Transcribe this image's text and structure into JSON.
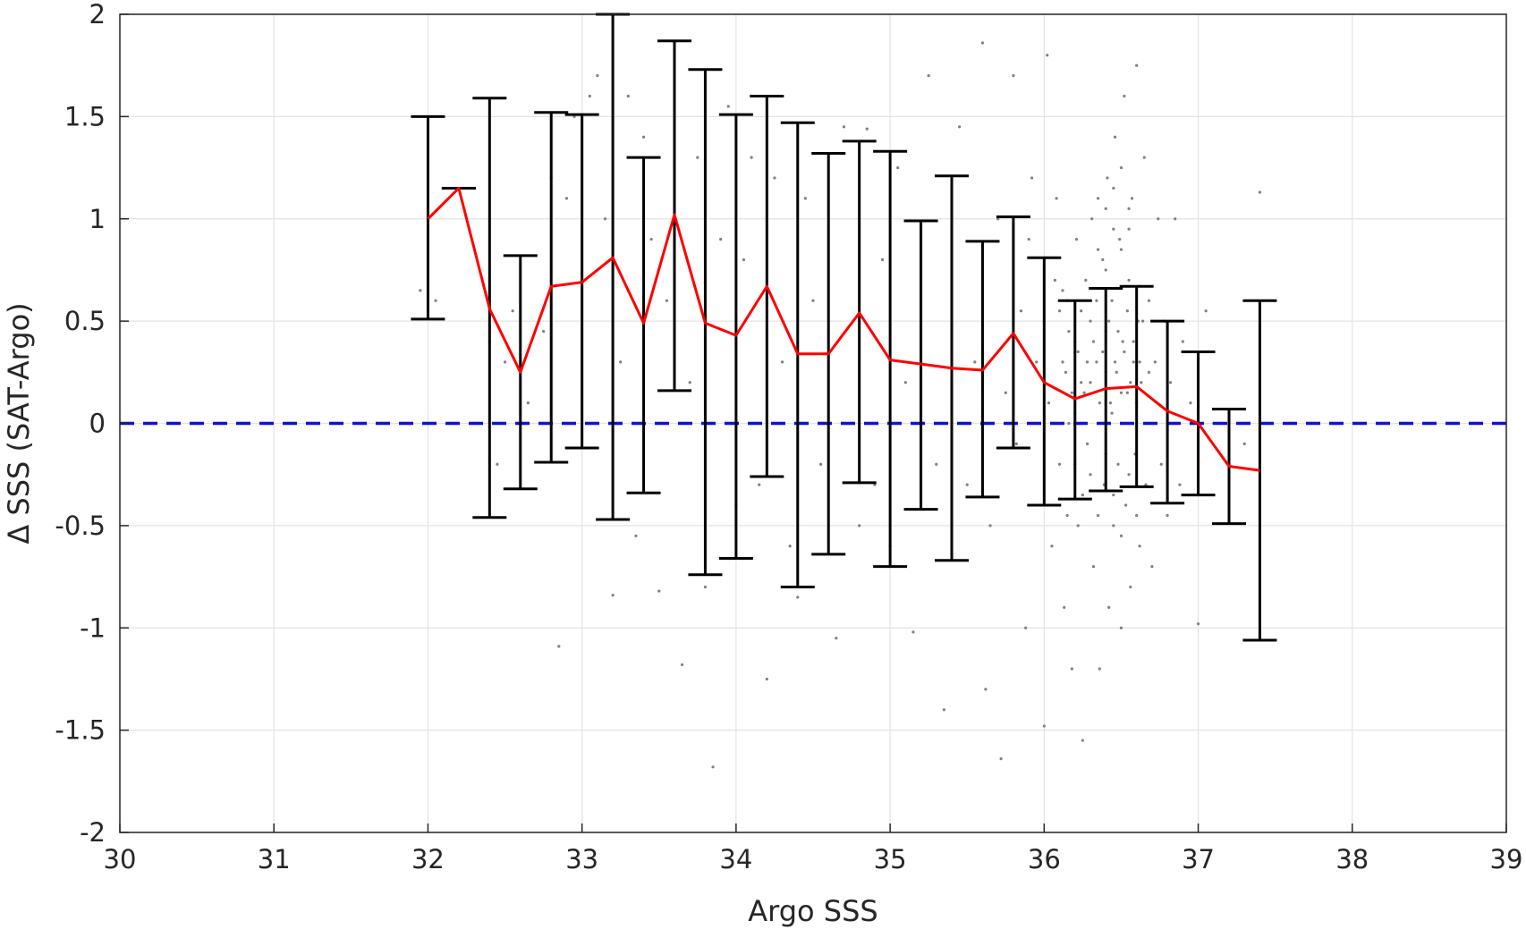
{
  "chart_data": {
    "type": "scatter",
    "title": "",
    "xlabel": "Argo SSS",
    "ylabel": "Δ SSS (SAT-Argo)",
    "xlim": [
      30,
      39
    ],
    "ylim": [
      -2,
      2
    ],
    "xticks": [
      30,
      31,
      32,
      33,
      34,
      35,
      36,
      37,
      38,
      39
    ],
    "xtick_labels": [
      "30",
      "31",
      "32",
      "33",
      "34",
      "35",
      "36",
      "37",
      "38",
      "39"
    ],
    "yticks": [
      -2,
      -1.5,
      -1,
      -0.5,
      0,
      0.5,
      1,
      1.5,
      2
    ],
    "ytick_labels": [
      "-2",
      "-1.5",
      "-1",
      "-0.5",
      "0",
      "0.5",
      "1",
      "1.5",
      "2"
    ],
    "grid": true,
    "reference_line": {
      "y": 0,
      "style": "dashed",
      "color": "#1010e0"
    },
    "mean_series": {
      "color": "#ff0000",
      "x": [
        32.0,
        32.2,
        32.4,
        32.6,
        32.8,
        33.0,
        33.2,
        33.4,
        33.6,
        33.8,
        34.0,
        34.2,
        34.4,
        34.6,
        34.8,
        35.0,
        35.2,
        35.4,
        35.6,
        35.8,
        36.0,
        36.2,
        36.4,
        36.6,
        36.8,
        37.0,
        37.2,
        37.4
      ],
      "y": [
        1.0,
        1.15,
        0.56,
        0.25,
        0.67,
        0.69,
        0.81,
        0.49,
        1.02,
        0.49,
        0.43,
        0.67,
        0.34,
        0.34,
        0.54,
        0.31,
        0.29,
        0.27,
        0.26,
        0.44,
        0.2,
        0.12,
        0.17,
        0.18,
        0.06,
        0.0,
        -0.21,
        -0.23
      ]
    },
    "error_bars": {
      "color": "#000000",
      "x": [
        32.0,
        32.2,
        32.4,
        32.6,
        32.8,
        33.0,
        33.2,
        33.4,
        33.6,
        33.8,
        34.0,
        34.2,
        34.4,
        34.6,
        34.8,
        35.0,
        35.2,
        35.4,
        35.6,
        35.8,
        36.0,
        36.2,
        36.4,
        36.6,
        36.8,
        37.0,
        37.2,
        37.4
      ],
      "upper": [
        1.5,
        1.15,
        1.59,
        0.82,
        1.52,
        1.51,
        2.0,
        1.3,
        1.87,
        1.73,
        1.51,
        1.6,
        1.47,
        1.32,
        1.38,
        1.33,
        0.99,
        1.21,
        0.89,
        1.01,
        0.81,
        0.6,
        0.66,
        0.67,
        0.5,
        0.35,
        0.07,
        0.6
      ],
      "lower": [
        0.51,
        1.15,
        -0.46,
        -0.32,
        -0.19,
        -0.12,
        -0.47,
        -0.34,
        0.16,
        -0.74,
        -0.66,
        -0.26,
        -0.8,
        -0.64,
        -0.29,
        -0.7,
        -0.42,
        -0.67,
        -0.36,
        -0.12,
        -0.4,
        -0.37,
        -0.33,
        -0.31,
        -0.39,
        -0.35,
        -0.49,
        -1.06
      ]
    },
    "scatter": {
      "color": "#808080",
      "note_count_shown": "many individual matchup points",
      "points": [
        [
          31.95,
          0.65
        ],
        [
          32.05,
          0.6
        ],
        [
          32.4,
          0.4
        ],
        [
          32.5,
          0.3
        ],
        [
          32.55,
          0.55
        ],
        [
          32.45,
          -0.2
        ],
        [
          32.65,
          0.1
        ],
        [
          32.75,
          0.45
        ],
        [
          32.8,
          1.2
        ],
        [
          32.85,
          -1.09
        ],
        [
          32.9,
          1.1
        ],
        [
          32.95,
          1.5
        ],
        [
          33.0,
          0.7
        ],
        [
          33.05,
          1.6
        ],
        [
          33.1,
          1.7
        ],
        [
          33.15,
          1.0
        ],
        [
          33.2,
          -0.84
        ],
        [
          33.25,
          0.3
        ],
        [
          33.3,
          1.6
        ],
        [
          33.35,
          -0.55
        ],
        [
          33.4,
          1.4
        ],
        [
          33.45,
          0.9
        ],
        [
          33.5,
          -0.82
        ],
        [
          33.55,
          0.6
        ],
        [
          33.6,
          1.25
        ],
        [
          33.65,
          -1.18
        ],
        [
          33.7,
          0.2
        ],
        [
          33.75,
          1.3
        ],
        [
          33.8,
          -0.8
        ],
        [
          33.85,
          -1.68
        ],
        [
          33.9,
          0.9
        ],
        [
          33.95,
          1.55
        ],
        [
          34.0,
          -0.4
        ],
        [
          34.05,
          0.8
        ],
        [
          34.1,
          1.3
        ],
        [
          34.15,
          -0.3
        ],
        [
          34.2,
          -1.25
        ],
        [
          34.25,
          1.2
        ],
        [
          34.3,
          0.3
        ],
        [
          34.35,
          -0.6
        ],
        [
          34.4,
          -0.85
        ],
        [
          34.45,
          1.1
        ],
        [
          34.5,
          0.6
        ],
        [
          34.55,
          -0.2
        ],
        [
          34.6,
          1.3
        ],
        [
          34.65,
          -1.05
        ],
        [
          34.7,
          1.45
        ],
        [
          34.75,
          0.0
        ],
        [
          34.8,
          -0.5
        ],
        [
          34.85,
          1.44
        ],
        [
          34.9,
          -0.3
        ],
        [
          34.95,
          0.8
        ],
        [
          35.0,
          -0.6
        ],
        [
          35.05,
          1.25
        ],
        [
          35.1,
          0.2
        ],
        [
          35.15,
          -1.02
        ],
        [
          35.2,
          0.5
        ],
        [
          35.25,
          1.7
        ],
        [
          35.3,
          -0.2
        ],
        [
          35.35,
          -1.4
        ],
        [
          35.4,
          0.6
        ],
        [
          35.45,
          1.45
        ],
        [
          35.5,
          -0.3
        ],
        [
          35.55,
          0.3
        ],
        [
          35.6,
          1.86
        ],
        [
          35.62,
          -1.3
        ],
        [
          35.65,
          -0.5
        ],
        [
          35.7,
          1.0
        ],
        [
          35.72,
          -1.64
        ],
        [
          35.75,
          0.15
        ],
        [
          35.8,
          1.7
        ],
        [
          35.82,
          -0.1
        ],
        [
          35.85,
          0.55
        ],
        [
          35.88,
          -1.0
        ],
        [
          35.9,
          0.9
        ],
        [
          35.92,
          1.2
        ],
        [
          35.95,
          0.3
        ],
        [
          35.97,
          -0.4
        ],
        [
          36.0,
          0.5
        ],
        [
          36.0,
          -1.48
        ],
        [
          36.02,
          1.8
        ],
        [
          36.03,
          0.1
        ],
        [
          36.05,
          -0.6
        ],
        [
          36.07,
          0.7
        ],
        [
          36.08,
          1.1
        ],
        [
          36.1,
          -0.2
        ],
        [
          36.12,
          0.3
        ],
        [
          36.13,
          -0.9
        ],
        [
          36.15,
          0.6
        ],
        [
          36.16,
          0.0
        ],
        [
          36.18,
          -1.2
        ],
        [
          36.2,
          0.4
        ],
        [
          36.21,
          0.9
        ],
        [
          36.22,
          -0.5
        ],
        [
          36.24,
          0.2
        ],
        [
          36.25,
          -1.55
        ],
        [
          36.27,
          0.7
        ],
        [
          36.28,
          -0.1
        ],
        [
          36.3,
          0.5
        ],
        [
          36.31,
          1.0
        ],
        [
          36.32,
          -0.7
        ],
        [
          36.34,
          0.3
        ],
        [
          36.35,
          0.0
        ],
        [
          36.36,
          -1.2
        ],
        [
          36.38,
          0.8
        ],
        [
          36.39,
          -0.3
        ],
        [
          36.4,
          0.45
        ],
        [
          36.41,
          1.2
        ],
        [
          36.42,
          -0.9
        ],
        [
          36.43,
          0.1
        ],
        [
          36.44,
          0.6
        ],
        [
          36.45,
          -0.5
        ],
        [
          36.46,
          1.4
        ],
        [
          36.47,
          0.25
        ],
        [
          36.48,
          -0.2
        ],
        [
          36.49,
          0.9
        ],
        [
          36.5,
          -1.0
        ],
        [
          36.51,
          0.4
        ],
        [
          36.52,
          1.6
        ],
        [
          36.53,
          -0.4
        ],
        [
          36.54,
          0.15
        ],
        [
          36.55,
          0.7
        ],
        [
          36.56,
          -0.8
        ],
        [
          36.57,
          1.1
        ],
        [
          36.58,
          0.3
        ],
        [
          36.59,
          -0.15
        ],
        [
          36.6,
          1.75
        ],
        [
          36.61,
          0.5
        ],
        [
          36.62,
          -0.6
        ],
        [
          36.63,
          0.2
        ],
        [
          36.65,
          1.3
        ],
        [
          36.66,
          -0.3
        ],
        [
          36.68,
          0.6
        ],
        [
          36.7,
          -0.7
        ],
        [
          36.72,
          0.3
        ],
        [
          36.74,
          1.0
        ],
        [
          36.76,
          -0.2
        ],
        [
          36.78,
          0.5
        ],
        [
          36.8,
          -0.45
        ],
        [
          36.82,
          0.2
        ],
        [
          36.85,
          1.0
        ],
        [
          36.88,
          -0.3
        ],
        [
          36.9,
          0.4
        ],
        [
          36.95,
          0.1
        ],
        [
          37.0,
          -0.98
        ],
        [
          37.05,
          0.55
        ],
        [
          37.1,
          0.0
        ],
        [
          37.2,
          -0.2
        ],
        [
          37.3,
          -0.1
        ],
        [
          37.4,
          1.13
        ],
        [
          36.1,
          0.55
        ],
        [
          36.12,
          0.65
        ],
        [
          36.14,
          0.25
        ],
        [
          36.16,
          0.45
        ],
        [
          36.18,
          0.15
        ],
        [
          36.2,
          0.05
        ],
        [
          36.22,
          0.35
        ],
        [
          36.24,
          0.55
        ],
        [
          36.26,
          0.15
        ],
        [
          36.28,
          0.3
        ],
        [
          36.3,
          0.2
        ],
        [
          36.32,
          0.4
        ],
        [
          36.34,
          0.6
        ],
        [
          36.36,
          0.1
        ],
        [
          36.38,
          0.35
        ],
        [
          36.4,
          0.25
        ],
        [
          36.42,
          0.5
        ],
        [
          36.44,
          0.05
        ],
        [
          36.46,
          0.3
        ],
        [
          36.48,
          0.45
        ],
        [
          36.5,
          0.15
        ],
        [
          36.52,
          0.35
        ],
        [
          36.54,
          0.55
        ],
        [
          36.56,
          0.2
        ],
        [
          36.58,
          0.4
        ],
        [
          36.6,
          0.1
        ],
        [
          36.62,
          0.3
        ],
        [
          36.64,
          0.5
        ],
        [
          36.66,
          0.0
        ],
        [
          36.68,
          0.25
        ],
        [
          36.3,
          -0.25
        ],
        [
          36.35,
          -0.45
        ],
        [
          36.4,
          -0.15
        ],
        [
          36.45,
          -0.35
        ],
        [
          36.5,
          -0.55
        ],
        [
          36.55,
          -0.25
        ],
        [
          36.6,
          -0.45
        ],
        [
          36.25,
          -0.35
        ],
        [
          36.2,
          -0.2
        ],
        [
          36.15,
          -0.45
        ],
        [
          36.35,
          0.85
        ],
        [
          36.4,
          0.75
        ],
        [
          36.45,
          0.95
        ],
        [
          36.5,
          0.85
        ],
        [
          36.55,
          1.05
        ],
        [
          36.45,
          1.15
        ],
        [
          36.5,
          1.25
        ],
        [
          36.4,
          1.05
        ],
        [
          36.55,
          0.95
        ],
        [
          36.35,
          1.1
        ]
      ]
    }
  }
}
